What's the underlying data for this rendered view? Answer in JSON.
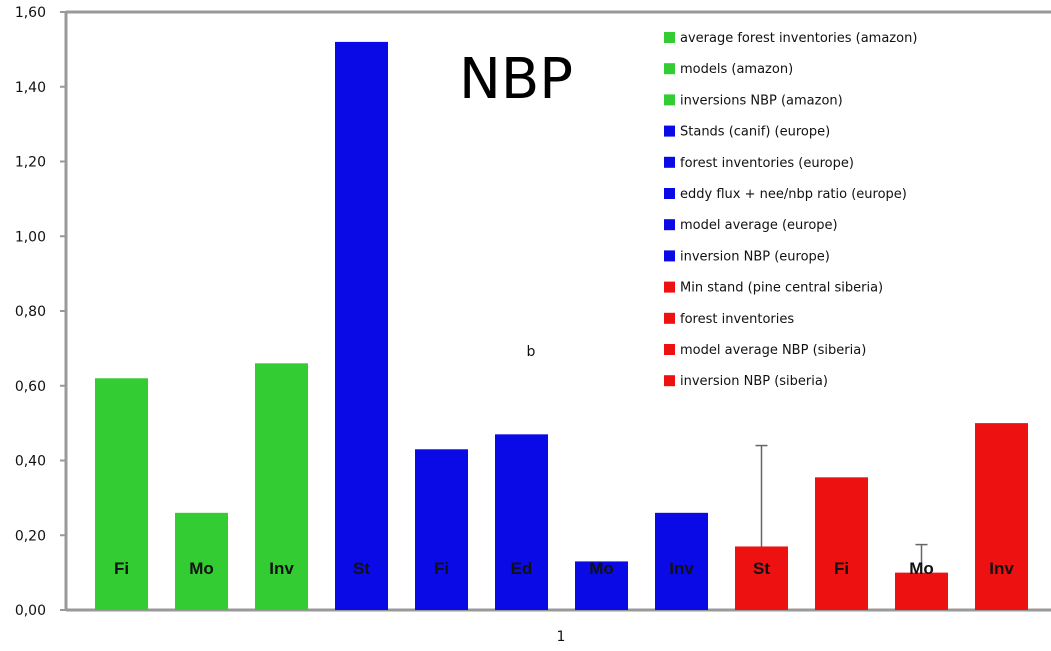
{
  "chart_data": {
    "type": "bar",
    "title": "NBP",
    "xlabel": "",
    "ylabel": "",
    "x_tick_label": "1",
    "annotation": "b",
    "ylim": [
      0,
      1.6
    ],
    "y_ticks": [
      "0,00",
      "0,20",
      "0,40",
      "0,60",
      "0,80",
      "1,00",
      "1,20",
      "1,40",
      "1,60"
    ],
    "grid": false,
    "legend_position": "top-right",
    "colors": {
      "amazon": "#33cc33",
      "europe": "#0a0ae6",
      "siberia": "#ee1111",
      "axis": "#999999",
      "error_bar": "#666666"
    },
    "series": [
      {
        "name": "average forest inventories (amazon)",
        "short_label": "Fi",
        "value": 0.62,
        "color": "#33cc33"
      },
      {
        "name": "models (amazon)",
        "short_label": "Mo",
        "value": 0.26,
        "color": "#33cc33"
      },
      {
        "name": "inversions NBP (amazon)",
        "short_label": "Inv",
        "value": 0.66,
        "color": "#33cc33"
      },
      {
        "name": "Stands (canif) (europe)",
        "short_label": "St",
        "value": 1.52,
        "color": "#0a0ae6"
      },
      {
        "name": "forest inventories (europe)",
        "short_label": "Fi",
        "value": 0.43,
        "color": "#0a0ae6"
      },
      {
        "name": "eddy flux + nee/nbp ratio (europe)",
        "short_label": "Ed",
        "value": 0.47,
        "color": "#0a0ae6"
      },
      {
        "name": "model average (europe)",
        "short_label": "Mo",
        "value": 0.13,
        "color": "#0a0ae6"
      },
      {
        "name": "inversion NBP (europe)",
        "short_label": "Inv",
        "value": 0.26,
        "color": "#0a0ae6"
      },
      {
        "name": "Min stand (pine central siberia)",
        "short_label": "St",
        "value": 0.17,
        "error_upper": 0.44,
        "color": "#ee1111"
      },
      {
        "name": "forest inventories",
        "short_label": "Fi",
        "value": 0.355,
        "color": "#ee1111"
      },
      {
        "name": "model average NBP (siberia)",
        "short_label": "Mo",
        "value": 0.1,
        "error_upper": 0.175,
        "color": "#ee1111"
      },
      {
        "name": "inversion NBP (siberia)",
        "short_label": "Inv",
        "value": 0.5,
        "color": "#ee1111"
      }
    ]
  }
}
